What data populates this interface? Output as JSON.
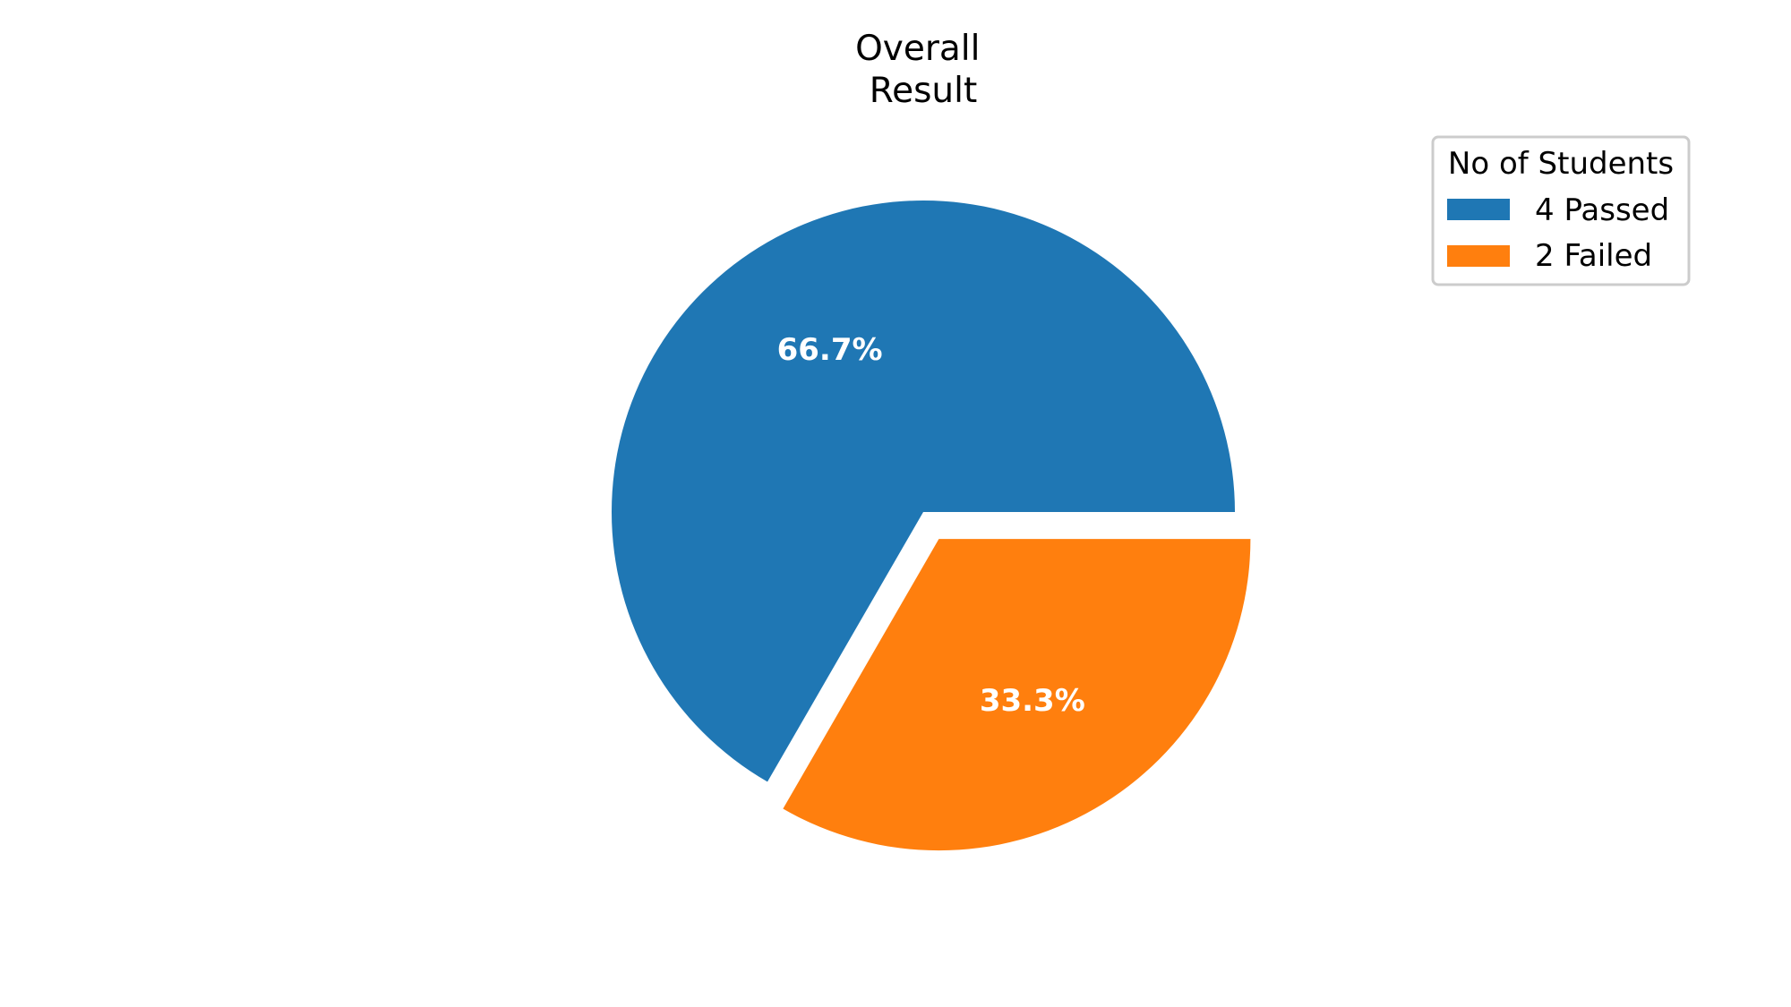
{
  "chart_data": {
    "type": "pie",
    "title": "Overall\nResult",
    "title_lines": [
      "Overall",
      "Result"
    ],
    "legend_title": "No of Students",
    "legend_placement": "top-right",
    "slices": [
      {
        "label": "4 Passed",
        "value": 4,
        "percent_label": "66.7%",
        "color": "#1f77b4",
        "exploded": false
      },
      {
        "label": "2 Failed",
        "value": 2,
        "percent_label": "33.3%",
        "color": "#ff7f0e",
        "exploded": true
      }
    ]
  }
}
